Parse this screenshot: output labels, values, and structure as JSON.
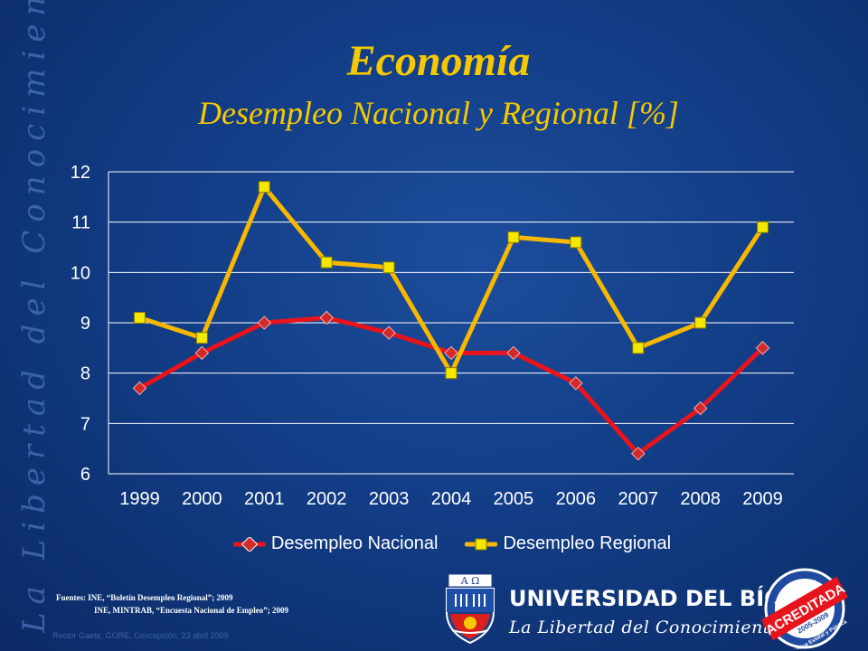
{
  "slide": {
    "title": "Economía",
    "subtitle": "Desempleo Nacional y Regional [%]",
    "side_text": "La Libertad del Conocimiento",
    "sources_line1": "Fuentes: INE, “Boletín Desempleo Regional”; 2009",
    "sources_line2": "INE, MINTRAB, “Encuesta Nacional de Empleo”; 2009",
    "footer_credit": "Rector Gaete, GORE, Concepción, 23 abril 2009"
  },
  "branding": {
    "university_name": "UNIVERSIDAD DEL BÍO-BÍO",
    "motto": "La Libertad del Conocimiento",
    "shield_letters": "A Ω",
    "seal_top": "En la VIII región",
    "seal_band": "ACREDITADA",
    "seal_years": "2005-2009",
    "seal_bottom": "Única Estatal y Pública"
  },
  "chart_data": {
    "type": "line",
    "title": "Desempleo Nacional y Regional [%]",
    "categories": [
      "1999",
      "2000",
      "2001",
      "2002",
      "2003",
      "2004",
      "2005",
      "2006",
      "2007",
      "2008",
      "2009"
    ],
    "series": [
      {
        "name": "Desempleo Nacional",
        "values": [
          7.7,
          8.4,
          9.0,
          9.1,
          8.8,
          8.4,
          8.4,
          7.8,
          6.4,
          7.3,
          8.5
        ],
        "color": "#e8141c",
        "marker": "diamond"
      },
      {
        "name": "Desempleo Regional",
        "values": [
          9.1,
          8.7,
          11.7,
          10.2,
          10.1,
          8.0,
          10.7,
          10.6,
          8.5,
          9.0,
          10.9
        ],
        "color": "#f8b800",
        "marker": "square"
      }
    ],
    "ylim": [
      6,
      12
    ],
    "yticks": [
      6,
      7,
      8,
      9,
      10,
      11,
      12
    ],
    "grid": true,
    "legend": "bottom"
  },
  "colors": {
    "title": "#f5c800",
    "background": "#123d86",
    "gridline": "#ffffff"
  }
}
